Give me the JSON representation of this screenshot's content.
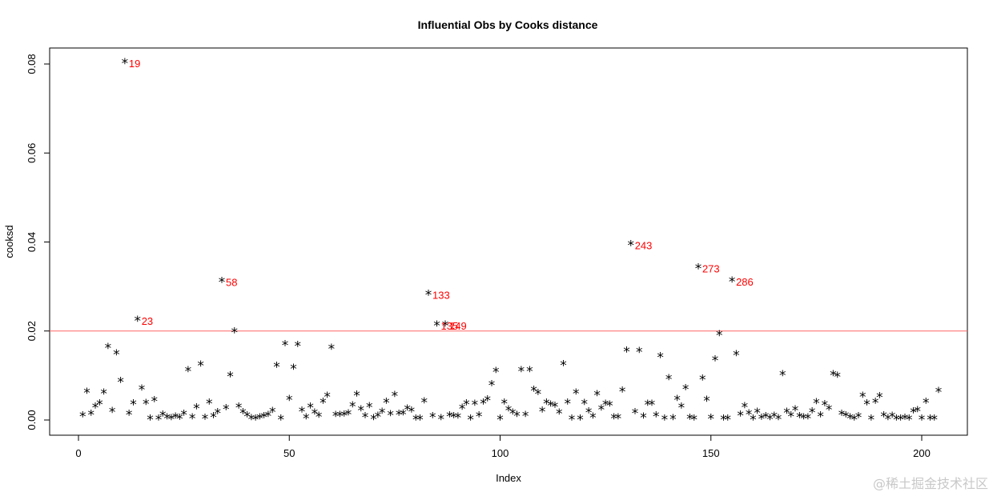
{
  "watermark": "@稀土掘金技术社区",
  "colors": {
    "threshold": "#ff6666",
    "label": "#ff0000",
    "points": "#000000",
    "frame": "#000000"
  },
  "chart_data": {
    "type": "scatter",
    "title": "Influential Obs by Cooks distance",
    "xlabel": "Index",
    "ylabel": "cooksd",
    "xlim": [
      0,
      203
    ],
    "ylim": [
      0,
      0.08
    ],
    "xticks": [
      0,
      50,
      100,
      150,
      200
    ],
    "xtick_labels": [
      "0",
      "50",
      "100",
      "150",
      "200"
    ],
    "yticks": [
      0,
      0.02,
      0.04,
      0.06,
      0.08
    ],
    "ytick_labels": [
      "0.00",
      "0.02",
      "0.04",
      "0.06",
      "0.08"
    ],
    "grid": false,
    "marker": "*",
    "threshold": 0.02,
    "series": [
      {
        "y": [
          0.0008,
          0.0061,
          0.0012,
          0.0028,
          0.0035,
          0.0059,
          0.0162,
          0.0018,
          0.0147,
          0.0085,
          0.0802,
          0.0012,
          0.0035,
          0.0223,
          0.0068,
          0.0036,
          0.0001,
          0.0042,
          0.0001,
          0.001,
          0.0004,
          0.0002,
          0.0005,
          0.0003,
          0.0012,
          0.011,
          0.0004,
          0.0026,
          0.0122,
          0.0003,
          0.0037,
          0.0006,
          0.0015,
          0.031,
          0.0024,
          0.0098,
          0.0197,
          0.0028,
          0.0015,
          0.0008,
          0.0002,
          0.0001,
          0.0004,
          0.0006,
          0.0009,
          0.0018,
          0.012,
          0.0001,
          0.0168,
          0.0045,
          0.0115,
          0.0166,
          0.0019,
          0.0004,
          0.0028,
          0.0014,
          0.0007,
          0.0039,
          0.0052,
          0.016,
          0.0009,
          0.0009,
          0.001,
          0.0013,
          0.0031,
          0.0055,
          0.0022,
          0.0006,
          0.0029,
          0.0002,
          0.0007,
          0.0016,
          0.0039,
          0.0011,
          0.0054,
          0.0012,
          0.0013,
          0.0023,
          0.0019,
          0.0001,
          0.0001,
          0.004,
          0.0281,
          0.0006,
          0.0212,
          0.0002,
          0.0212,
          0.0008,
          0.0006,
          0.0005,
          0.0025,
          0.0035,
          0.0001,
          0.0034,
          0.0008,
          0.0037,
          0.0044,
          0.0078,
          0.0108,
          0.0001,
          0.0037,
          0.0022,
          0.0014,
          0.0009,
          0.011,
          0.0009,
          0.011,
          0.0066,
          0.0058,
          0.0019,
          0.0037,
          0.0032,
          0.003,
          0.0014,
          0.0123,
          0.0037,
          0.0001,
          0.0059,
          0.0001,
          0.0036,
          0.0017,
          0.0005,
          0.0056,
          0.0023,
          0.0034,
          0.0032,
          0.0004,
          0.0004,
          0.0064,
          0.0154,
          0.0393,
          0.0015,
          0.0153,
          0.0005,
          0.0034,
          0.0034,
          0.0008,
          0.0141,
          0.0001,
          0.0092,
          0.0002,
          0.0045,
          0.0028,
          0.0069,
          0.0003,
          0.0001,
          0.0341,
          0.0091,
          0.0043,
          0.0003,
          0.0134,
          0.0191,
          0.0001,
          0.0001,
          0.0311,
          0.0146,
          0.001,
          0.0029,
          0.0013,
          0.0001,
          0.0016,
          0.0003,
          0.0006,
          0.0002,
          0.0007,
          0.0002,
          0.0101,
          0.0016,
          0.0008,
          0.0022,
          0.0006,
          0.0004,
          0.0004,
          0.0017,
          0.0038,
          0.0008,
          0.0033,
          0.0023,
          0.0101,
          0.0097,
          0.0012,
          0.0008,
          0.0004,
          0.0001,
          0.0006,
          0.0052,
          0.0035,
          0.0001,
          0.0039,
          0.0051,
          0.0008,
          0.0002,
          0.0007,
          0.0001,
          0.0001,
          0.0003,
          0.0001,
          0.0017,
          0.002,
          0.0001,
          0.0039,
          0.0001,
          0.0001,
          0.0063
        ]
      }
    ],
    "annotations": [
      {
        "index": 11,
        "text": "19"
      },
      {
        "index": 14,
        "text": "23"
      },
      {
        "index": 34,
        "text": "58"
      },
      {
        "index": 83,
        "text": "133"
      },
      {
        "index": 85,
        "text": "135"
      },
      {
        "index": 87,
        "text": "149"
      },
      {
        "index": 131,
        "text": "243"
      },
      {
        "index": 147,
        "text": "273"
      },
      {
        "index": 155,
        "text": "286"
      }
    ]
  }
}
